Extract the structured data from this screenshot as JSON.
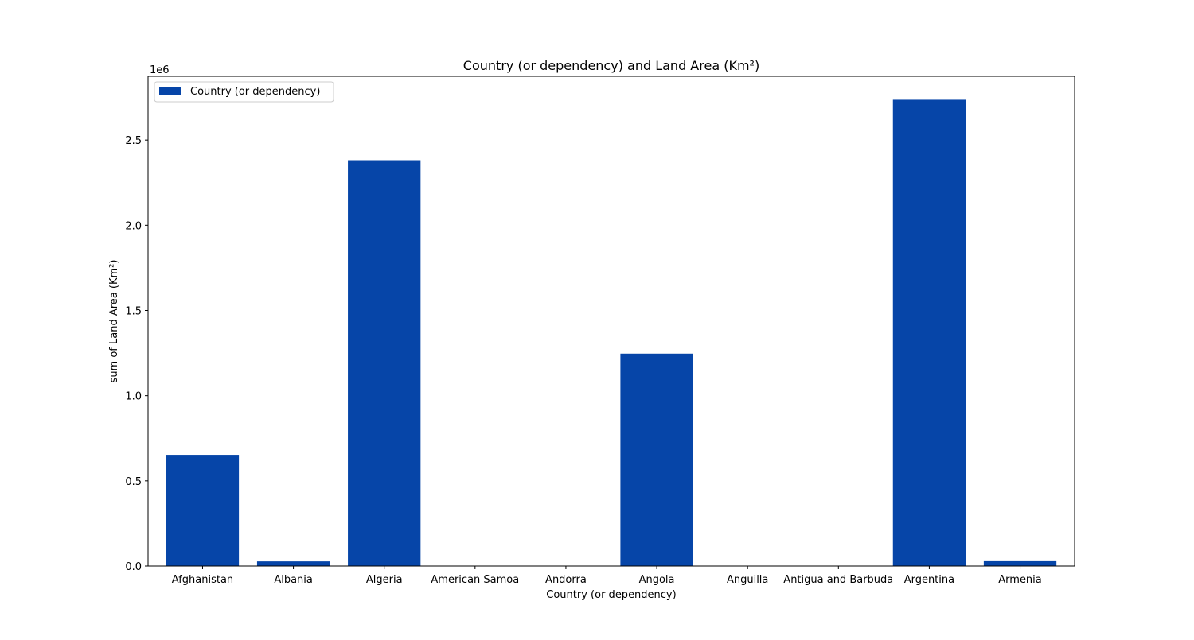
{
  "chart_data": {
    "type": "bar",
    "title": "Country (or dependency) and Land Area (Km²)",
    "xlabel": "Country (or dependency)",
    "ylabel": "sum of Land Area (Km²)",
    "y_offset_label": "1e6",
    "categories": [
      "Afghanistan",
      "Albania",
      "Algeria",
      "American Samoa",
      "Andorra",
      "Angola",
      "Anguilla",
      "Antigua and Barbuda",
      "Argentina",
      "Armenia"
    ],
    "series": [
      {
        "name": "Country (or dependency)",
        "values": [
          652860,
          27400,
          2381740,
          200,
          470,
          1246700,
          90,
          440,
          2736690,
          28470
        ],
        "color": "#0645a8"
      }
    ],
    "ylim": [
      0,
      2874000
    ],
    "yticks": [
      0,
      500000,
      1000000,
      1500000,
      2000000,
      2500000
    ],
    "ytick_labels": [
      "0.0",
      "0.5",
      "1.0",
      "1.5",
      "2.0",
      "2.5"
    ],
    "grid": false,
    "legend_position": "top-left"
  }
}
